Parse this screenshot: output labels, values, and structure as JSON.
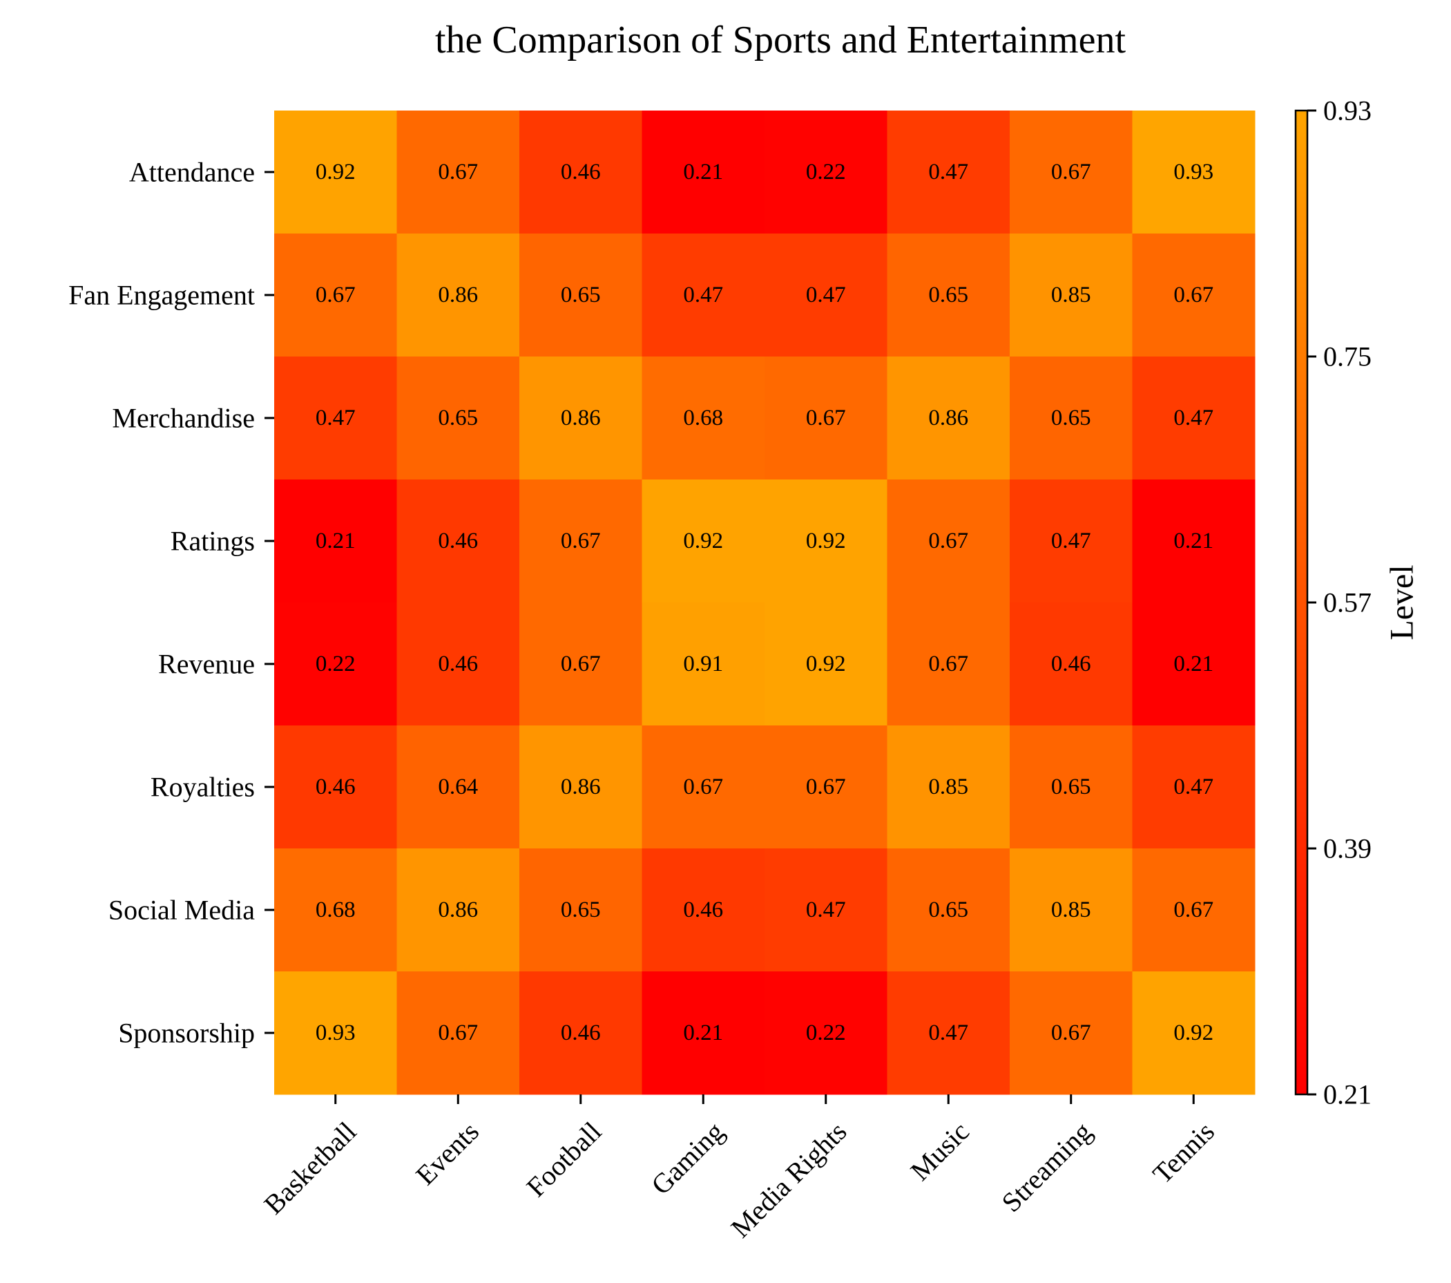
{
  "chart_data": {
    "type": "heatmap",
    "title": "the Comparison of Sports and Entertainment",
    "x_categories": [
      "Basketball",
      "Events",
      "Football",
      "Gaming",
      "Media Rights",
      "Music",
      "Streaming",
      "Tennis"
    ],
    "y_categories": [
      "Attendance",
      "Fan Engagement",
      "Merchandise",
      "Ratings",
      "Revenue",
      "Royalties",
      "Social Media",
      "Sponsorship"
    ],
    "values": [
      [
        0.92,
        0.67,
        0.46,
        0.21,
        0.22,
        0.47,
        0.67,
        0.93
      ],
      [
        0.67,
        0.86,
        0.65,
        0.47,
        0.47,
        0.65,
        0.85,
        0.67
      ],
      [
        0.47,
        0.65,
        0.86,
        0.68,
        0.67,
        0.86,
        0.65,
        0.47
      ],
      [
        0.21,
        0.46,
        0.67,
        0.92,
        0.92,
        0.67,
        0.47,
        0.21
      ],
      [
        0.22,
        0.46,
        0.67,
        0.91,
        0.92,
        0.67,
        0.46,
        0.21
      ],
      [
        0.46,
        0.64,
        0.86,
        0.67,
        0.67,
        0.85,
        0.65,
        0.47
      ],
      [
        0.68,
        0.86,
        0.65,
        0.46,
        0.47,
        0.65,
        0.85,
        0.67
      ],
      [
        0.93,
        0.67,
        0.46,
        0.21,
        0.22,
        0.47,
        0.67,
        0.92
      ]
    ],
    "colormap": {
      "low": "#ff0000",
      "high": "#ffa500"
    },
    "colorbar": {
      "label": "Level",
      "range": [
        0.21,
        0.93
      ],
      "ticks": [
        "0.21",
        "0.39",
        "0.57",
        "0.75",
        "0.93"
      ]
    },
    "grid": false
  }
}
